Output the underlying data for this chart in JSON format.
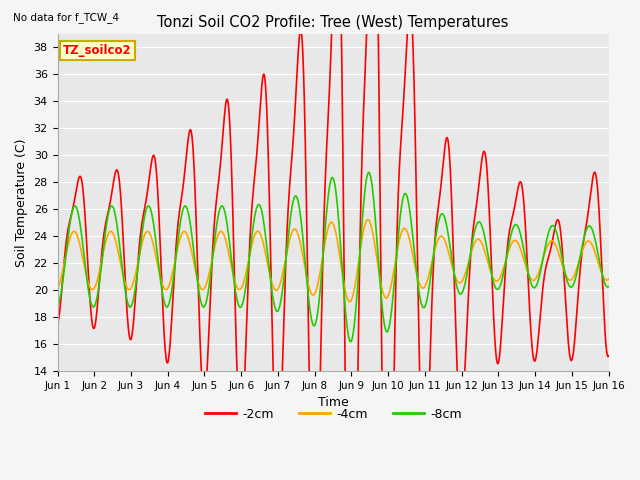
{
  "title": "Tonzi Soil CO2 Profile: Tree (West) Temperatures",
  "note": "No data for f_TCW_4",
  "annotation": "TZ_soilco2",
  "xlabel": "Time",
  "ylabel": "Soil Temperature (C)",
  "ylim": [
    14,
    39
  ],
  "yticks": [
    14,
    16,
    18,
    20,
    22,
    24,
    26,
    28,
    30,
    32,
    34,
    36,
    38
  ],
  "xtick_labels": [
    "Jun 1",
    "Jun 2",
    "Jun 3",
    "Jun 4",
    "Jun 5",
    "Jun 6",
    "Jun 7",
    "Jun 8",
    "Jun 9",
    "Jun 10",
    "Jun 11",
    "Jun 12",
    "Jun 13",
    "Jun 14",
    "Jun 15",
    "Jun 16"
  ],
  "series": {
    "-2cm": {
      "color": "#ff0000",
      "linewidth": 1.2
    },
    "-4cm": {
      "color": "#ffa500",
      "linewidth": 1.2
    },
    "-8cm": {
      "color": "#22cc00",
      "linewidth": 1.2
    }
  },
  "legend_labels": [
    "-2cm",
    "-4cm",
    "-8cm"
  ],
  "legend_colors": [
    "#ff0000",
    "#ffa500",
    "#22cc00"
  ],
  "fig_bg": "#f5f5f5",
  "plot_bg": "#e8e8e8",
  "grid_color": "#ffffff"
}
